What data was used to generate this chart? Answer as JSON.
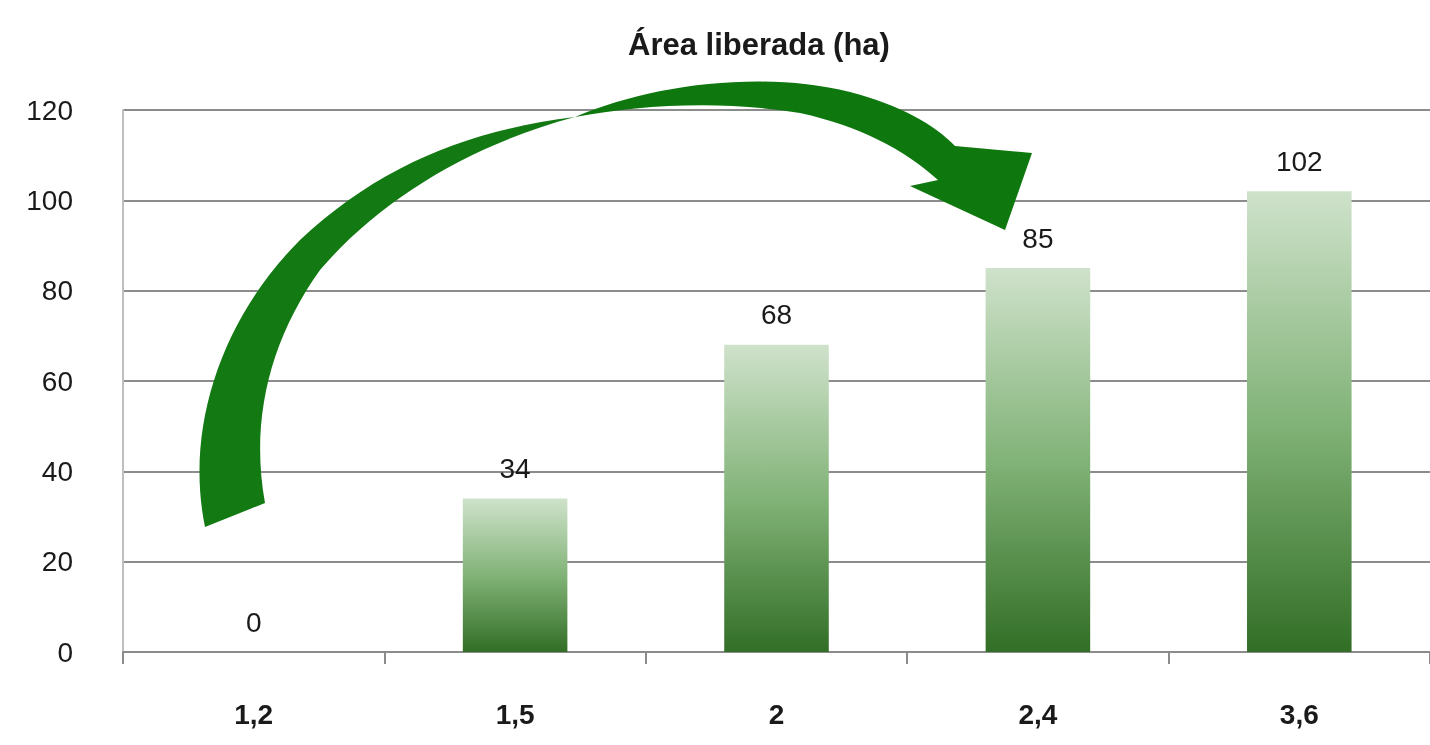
{
  "chart_data": {
    "type": "bar",
    "title": "Área liberada (ha)",
    "categories": [
      "1,2",
      "1,5",
      "2",
      "2,4",
      "3,6"
    ],
    "values": [
      0,
      34,
      68,
      85,
      102
    ],
    "color": "#3f8a2f",
    "ylim": [
      0,
      120
    ],
    "yticks": [
      0,
      20,
      40,
      60,
      80,
      100,
      120
    ],
    "grid": "y",
    "data_labels": true
  }
}
